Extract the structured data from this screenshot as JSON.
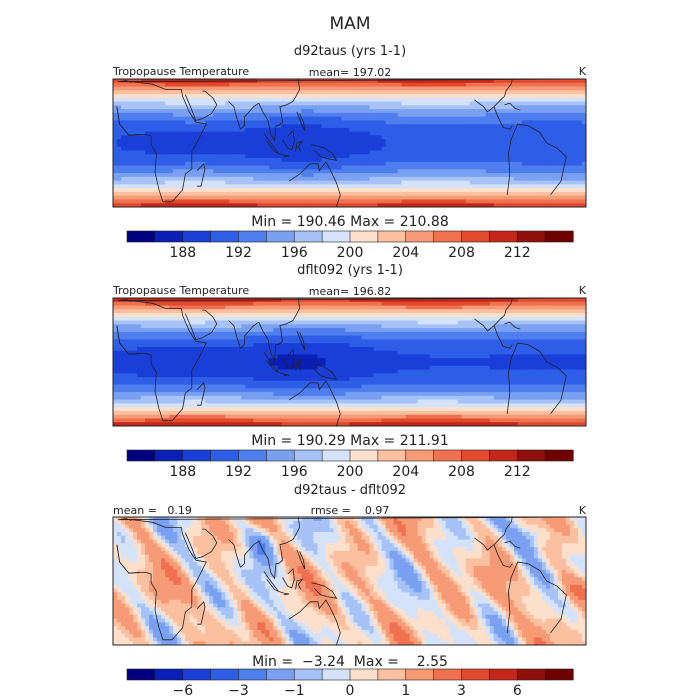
{
  "figure_title": "MAM",
  "chart_data": [
    {
      "type": "heatmap",
      "title": "d92taus (yrs 1-1)",
      "field_label": "Tropopause Temperature",
      "stat_left": "",
      "stat_mid": "mean= 197.02",
      "units": "K",
      "minmax": "Min = 190.46  Max = 210.88",
      "min": 190.46,
      "max": 210.88,
      "mean": 197.02,
      "pattern": "tropopause",
      "bias": 0.0,
      "levels": [
        186,
        188,
        190,
        192,
        194,
        196,
        198,
        200,
        202,
        204,
        206,
        208,
        210,
        212,
        214
      ],
      "tick_labels": [
        "188",
        "192",
        "196",
        "200",
        "204",
        "208",
        "212"
      ],
      "tick_values": [
        188,
        192,
        196,
        200,
        204,
        208,
        212
      ]
    },
    {
      "type": "heatmap",
      "title": "dflt092 (yrs 1-1)",
      "field_label": "Tropopause Temperature",
      "stat_left": "",
      "stat_mid": "mean= 196.82",
      "units": "K",
      "minmax": "Min = 190.29  Max = 211.91",
      "min": 190.29,
      "max": 211.91,
      "mean": 196.82,
      "pattern": "tropopause",
      "bias": -0.4,
      "levels": [
        186,
        188,
        190,
        192,
        194,
        196,
        198,
        200,
        202,
        204,
        206,
        208,
        210,
        212,
        214
      ],
      "tick_labels": [
        "188",
        "192",
        "196",
        "200",
        "204",
        "208",
        "212"
      ],
      "tick_values": [
        188,
        192,
        196,
        200,
        204,
        208,
        212
      ]
    },
    {
      "type": "heatmap",
      "title": "d92taus - dflt092",
      "field_label": "",
      "stat_left": "mean =   0.19",
      "stat_mid": "rmse =    0.97",
      "units": "K",
      "minmax": "Min =  −3.24  Max =    2.55",
      "min": -3.24,
      "max": 2.55,
      "mean": 0.19,
      "rmse": 0.97,
      "pattern": "difference",
      "bias": 0.0,
      "levels": [
        -8,
        -6,
        -5,
        -3,
        -2,
        -1,
        -0.5,
        0,
        0.5,
        1,
        2,
        3,
        5,
        6,
        8
      ],
      "tick_labels": [
        "−6",
        "−3",
        "−1",
        "0",
        "1",
        "3",
        "6"
      ],
      "tick_values": [
        -6,
        -3,
        -1,
        0,
        1,
        3,
        6
      ]
    }
  ],
  "palette": [
    "#000080",
    "#0a1fb5",
    "#1a3fd9",
    "#2e5ee8",
    "#4f7eee",
    "#7aa0f2",
    "#a6c2f6",
    "#d4e3fa",
    "#fde0cc",
    "#fbc0a0",
    "#f69b76",
    "#ef7150",
    "#e14a2d",
    "#c4271a",
    "#8f0f0a",
    "#6e0000"
  ]
}
